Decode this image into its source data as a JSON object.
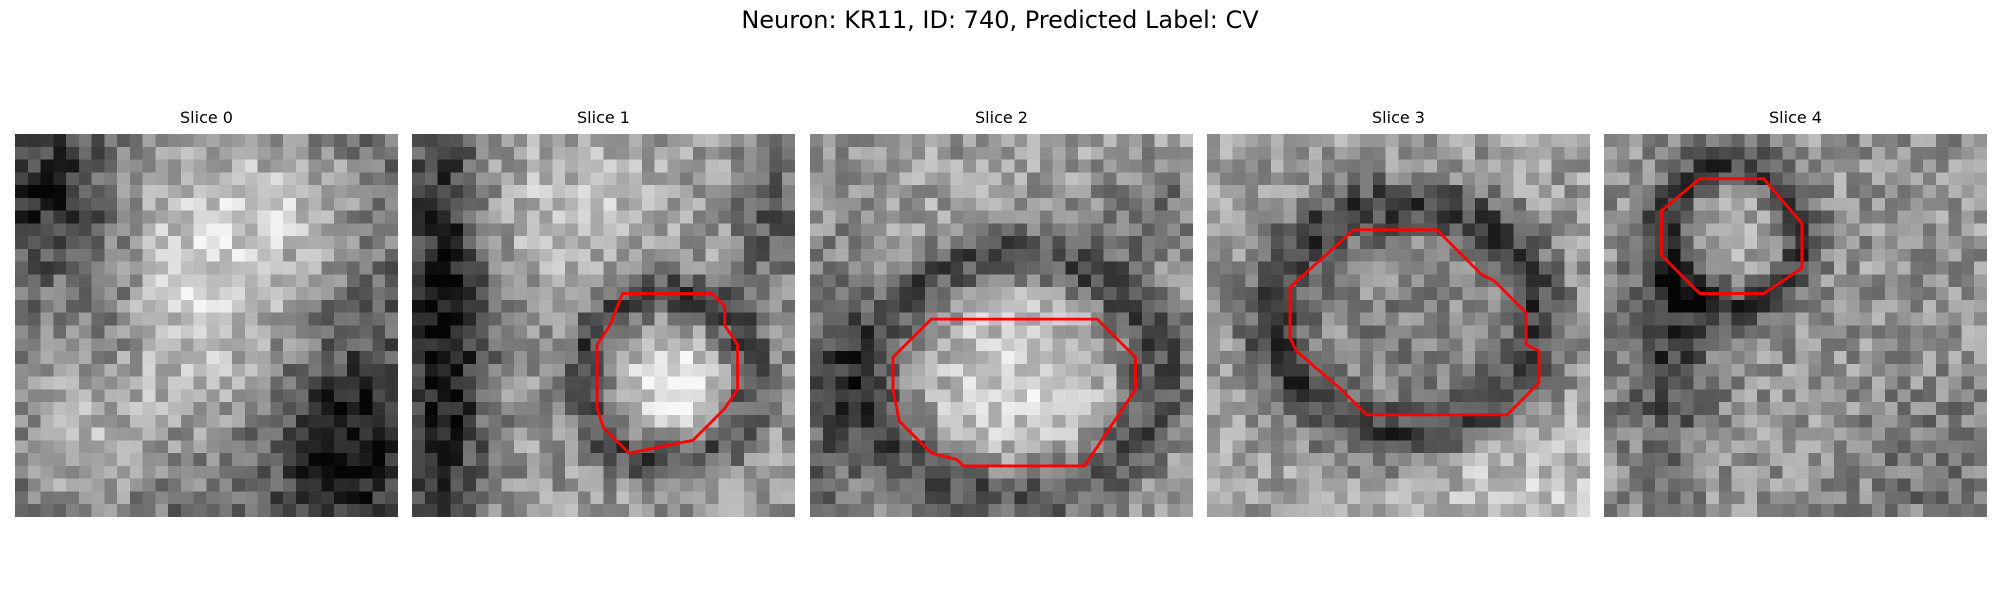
{
  "figure": {
    "title": "Neuron: KR11, ID: 740, Predicted Label: CV"
  },
  "contour_color": "#ff0000",
  "grid_size": 30,
  "panels": [
    {
      "title": "Slice 0",
      "seed": 11,
      "pattern": "s0",
      "contour": []
    },
    {
      "title": "Slice 1",
      "seed": 23,
      "pattern": "s1",
      "contour": [
        [
          16.5,
          12.5
        ],
        [
          23.5,
          12.5
        ],
        [
          24.5,
          13.5
        ],
        [
          24.5,
          15.0
        ],
        [
          25.5,
          16.5
        ],
        [
          25.5,
          20.0
        ],
        [
          24.5,
          21.5
        ],
        [
          23.5,
          22.5
        ],
        [
          22.0,
          24.0
        ],
        [
          17.0,
          25.0
        ],
        [
          15.0,
          23.0
        ],
        [
          14.5,
          21.5
        ],
        [
          14.5,
          16.5
        ],
        [
          15.5,
          15.0
        ]
      ]
    },
    {
      "title": "Slice 2",
      "seed": 37,
      "pattern": "s2",
      "contour": [
        [
          9.5,
          14.5
        ],
        [
          22.5,
          14.5
        ],
        [
          25.5,
          17.5
        ],
        [
          25.5,
          20.0
        ],
        [
          21.5,
          26.0
        ],
        [
          12.0,
          26.0
        ],
        [
          11.5,
          25.5
        ],
        [
          9.5,
          25.0
        ],
        [
          7.0,
          22.5
        ],
        [
          6.5,
          20.0
        ],
        [
          6.5,
          17.5
        ]
      ]
    },
    {
      "title": "Slice 3",
      "seed": 51,
      "pattern": "s3",
      "contour": [
        [
          11.5,
          7.5
        ],
        [
          18.0,
          7.5
        ],
        [
          21.5,
          11.0
        ],
        [
          22.5,
          11.5
        ],
        [
          25.0,
          14.0
        ],
        [
          25.0,
          16.5
        ],
        [
          26.0,
          17.0
        ],
        [
          26.0,
          19.5
        ],
        [
          23.5,
          22.0
        ],
        [
          12.5,
          22.0
        ],
        [
          10.5,
          20.0
        ],
        [
          7.0,
          17.0
        ],
        [
          6.5,
          16.0
        ],
        [
          6.5,
          12.0
        ]
      ]
    },
    {
      "title": "Slice 4",
      "seed": 67,
      "pattern": "s4",
      "contour": [
        [
          7.5,
          3.5
        ],
        [
          12.5,
          3.5
        ],
        [
          15.5,
          7.0
        ],
        [
          15.5,
          10.5
        ],
        [
          12.5,
          12.5
        ],
        [
          7.5,
          12.5
        ],
        [
          4.5,
          9.5
        ],
        [
          4.5,
          6.0
        ]
      ]
    }
  ]
}
